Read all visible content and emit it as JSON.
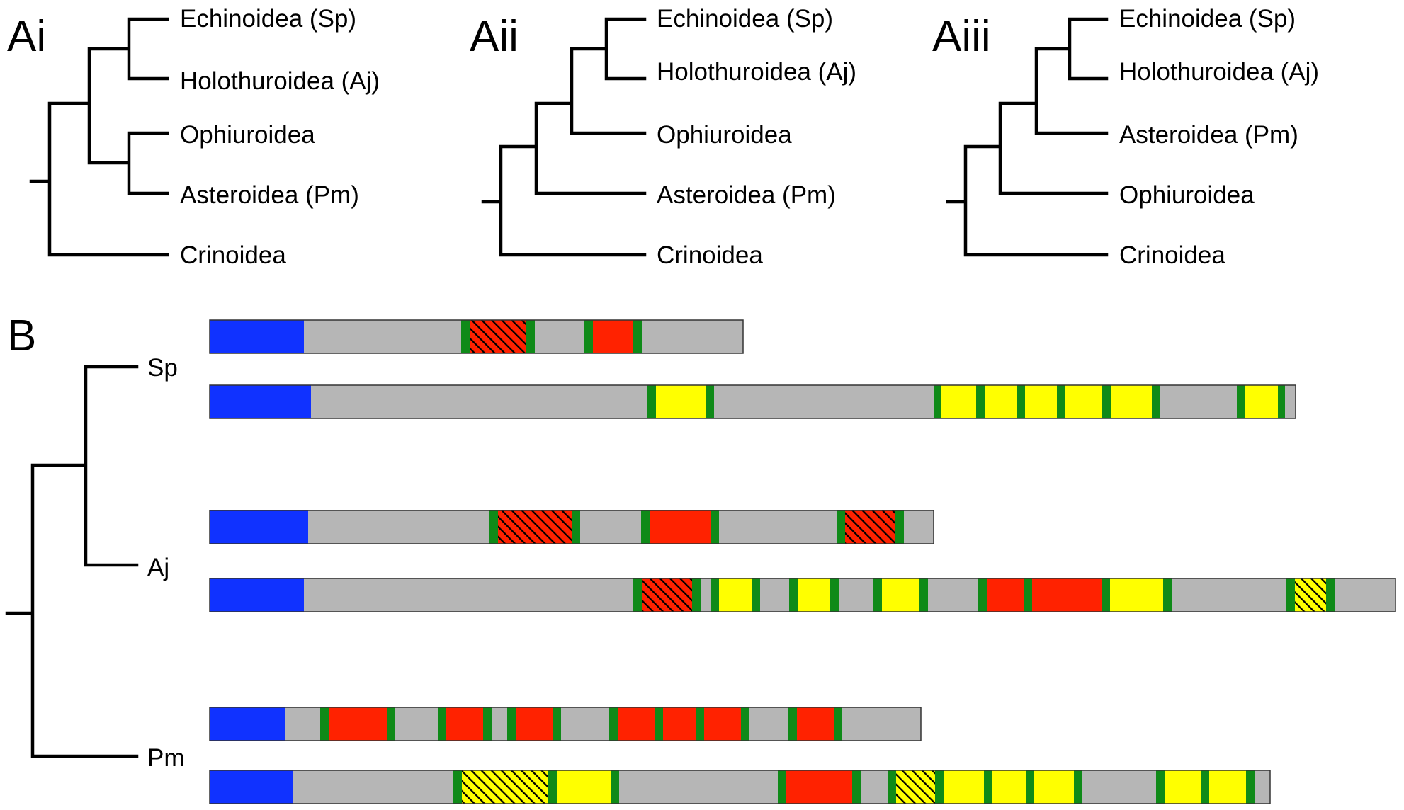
{
  "colors": {
    "blue": "#1032ff",
    "gray": "#b6b6b6",
    "red": "#ff2200",
    "yellow": "#ffff00",
    "green": "#0f8a18",
    "outline": "#333333"
  },
  "panels": {
    "ai": {
      "label": "Ai",
      "taxa": [
        "Echinoidea (Sp)",
        "Holothuroidea (Aj)",
        "Ophiuroidea",
        "Asteroidea (Pm)",
        "Crinoidea"
      ]
    },
    "aii": {
      "label": "Aii",
      "taxa": [
        "Echinoidea (Sp)",
        "Holothuroidea (Aj)",
        "Ophiuroidea",
        "Asteroidea (Pm)",
        "Crinoidea"
      ]
    },
    "aiii": {
      "label": "Aiii",
      "taxa": [
        "Echinoidea (Sp)",
        "Holothuroidea (Aj)",
        "Asteroidea (Pm)",
        "Ophiuroidea",
        "Crinoidea"
      ]
    },
    "b": {
      "label": "B",
      "species": [
        "Sp",
        "Aj",
        "Pm"
      ]
    }
  },
  "protein_domains": [
    {
      "species": "Sp",
      "segments": [
        [
          "blue",
          133
        ],
        [
          "gray",
          222
        ],
        [
          "green",
          12
        ],
        [
          "red-hatched",
          80
        ],
        [
          "green",
          12
        ],
        [
          "gray",
          70
        ],
        [
          "green",
          12
        ],
        [
          "red",
          57
        ],
        [
          "green",
          12
        ],
        [
          "gray",
          143
        ]
      ]
    },
    {
      "species": "Sp",
      "segments": [
        [
          "blue",
          143
        ],
        [
          "gray",
          475
        ],
        [
          "green",
          12
        ],
        [
          "yellow",
          70
        ],
        [
          "green",
          12
        ],
        [
          "gray",
          310
        ],
        [
          "green",
          10
        ],
        [
          "yellow",
          50
        ],
        [
          "green",
          12
        ],
        [
          "yellow",
          45
        ],
        [
          "green",
          12
        ],
        [
          "yellow",
          45
        ],
        [
          "green",
          12
        ],
        [
          "yellow",
          52
        ],
        [
          "green",
          12
        ],
        [
          "yellow",
          58
        ],
        [
          "green",
          12
        ],
        [
          "gray",
          108
        ],
        [
          "green",
          12
        ],
        [
          "yellow",
          46
        ],
        [
          "green",
          10
        ],
        [
          "gray",
          15
        ]
      ]
    },
    {
      "species": "Aj",
      "segments": [
        [
          "blue",
          139
        ],
        [
          "gray",
          256
        ],
        [
          "green",
          12
        ],
        [
          "red-hatched",
          104
        ],
        [
          "green",
          12
        ],
        [
          "gray",
          86
        ],
        [
          "green",
          12
        ],
        [
          "red",
          86
        ],
        [
          "green",
          12
        ],
        [
          "gray",
          166
        ],
        [
          "green",
          12
        ],
        [
          "red-hatched",
          71
        ],
        [
          "green",
          12
        ],
        [
          "gray",
          42
        ]
      ]
    },
    {
      "species": "Aj",
      "segments": [
        [
          "blue",
          133
        ],
        [
          "gray",
          465
        ],
        [
          "green",
          12
        ],
        [
          "red-hatched",
          71
        ],
        [
          "green",
          12
        ],
        [
          "gray",
          14
        ],
        [
          "green",
          12
        ],
        [
          "yellow",
          46
        ],
        [
          "green",
          12
        ],
        [
          "gray",
          41
        ],
        [
          "green",
          12
        ],
        [
          "yellow",
          46
        ],
        [
          "green",
          12
        ],
        [
          "gray",
          49
        ],
        [
          "green",
          12
        ],
        [
          "yellow",
          53
        ],
        [
          "green",
          12
        ],
        [
          "gray",
          71
        ],
        [
          "green",
          12
        ],
        [
          "red",
          52
        ],
        [
          "green",
          12
        ],
        [
          "red",
          98
        ],
        [
          "green",
          12
        ],
        [
          "yellow",
          75
        ],
        [
          "green",
          12
        ],
        [
          "gray",
          162
        ],
        [
          "green",
          12
        ],
        [
          "yellow-hatched",
          44
        ],
        [
          "green",
          12
        ],
        [
          "gray",
          86
        ]
      ]
    },
    {
      "species": "Pm",
      "segments": [
        [
          "blue",
          106
        ],
        [
          "gray",
          50
        ],
        [
          "green",
          12
        ],
        [
          "red",
          82
        ],
        [
          "green",
          12
        ],
        [
          "gray",
          60
        ],
        [
          "green",
          12
        ],
        [
          "red",
          52
        ],
        [
          "green",
          12
        ],
        [
          "gray",
          22
        ],
        [
          "green",
          12
        ],
        [
          "red",
          52
        ],
        [
          "green",
          12
        ],
        [
          "gray",
          68
        ],
        [
          "green",
          12
        ],
        [
          "red",
          52
        ],
        [
          "green",
          12
        ],
        [
          "red",
          46
        ],
        [
          "green",
          12
        ],
        [
          "red",
          52
        ],
        [
          "green",
          12
        ],
        [
          "gray",
          55
        ],
        [
          "green",
          12
        ],
        [
          "red",
          52
        ],
        [
          "green",
          12
        ],
        [
          "gray",
          111
        ]
      ]
    },
    {
      "species": "Pm",
      "segments": [
        [
          "blue",
          117
        ],
        [
          "gray",
          227
        ],
        [
          "green",
          12
        ],
        [
          "yellow-hatched",
          122
        ],
        [
          "green",
          12
        ],
        [
          "yellow",
          76
        ],
        [
          "green",
          12
        ],
        [
          "gray",
          224
        ],
        [
          "green",
          12
        ],
        [
          "red",
          93
        ],
        [
          "green",
          12
        ],
        [
          "gray",
          38
        ],
        [
          "green",
          12
        ],
        [
          "yellow-hatched",
          55
        ],
        [
          "green",
          12
        ],
        [
          "yellow",
          57
        ],
        [
          "green",
          12
        ],
        [
          "yellow",
          47
        ],
        [
          "green",
          12
        ],
        [
          "yellow",
          56
        ],
        [
          "green",
          12
        ],
        [
          "gray",
          104
        ],
        [
          "green",
          12
        ],
        [
          "yellow",
          51
        ],
        [
          "green",
          12
        ],
        [
          "yellow",
          52
        ],
        [
          "green",
          12
        ],
        [
          "gray",
          22
        ]
      ]
    }
  ]
}
